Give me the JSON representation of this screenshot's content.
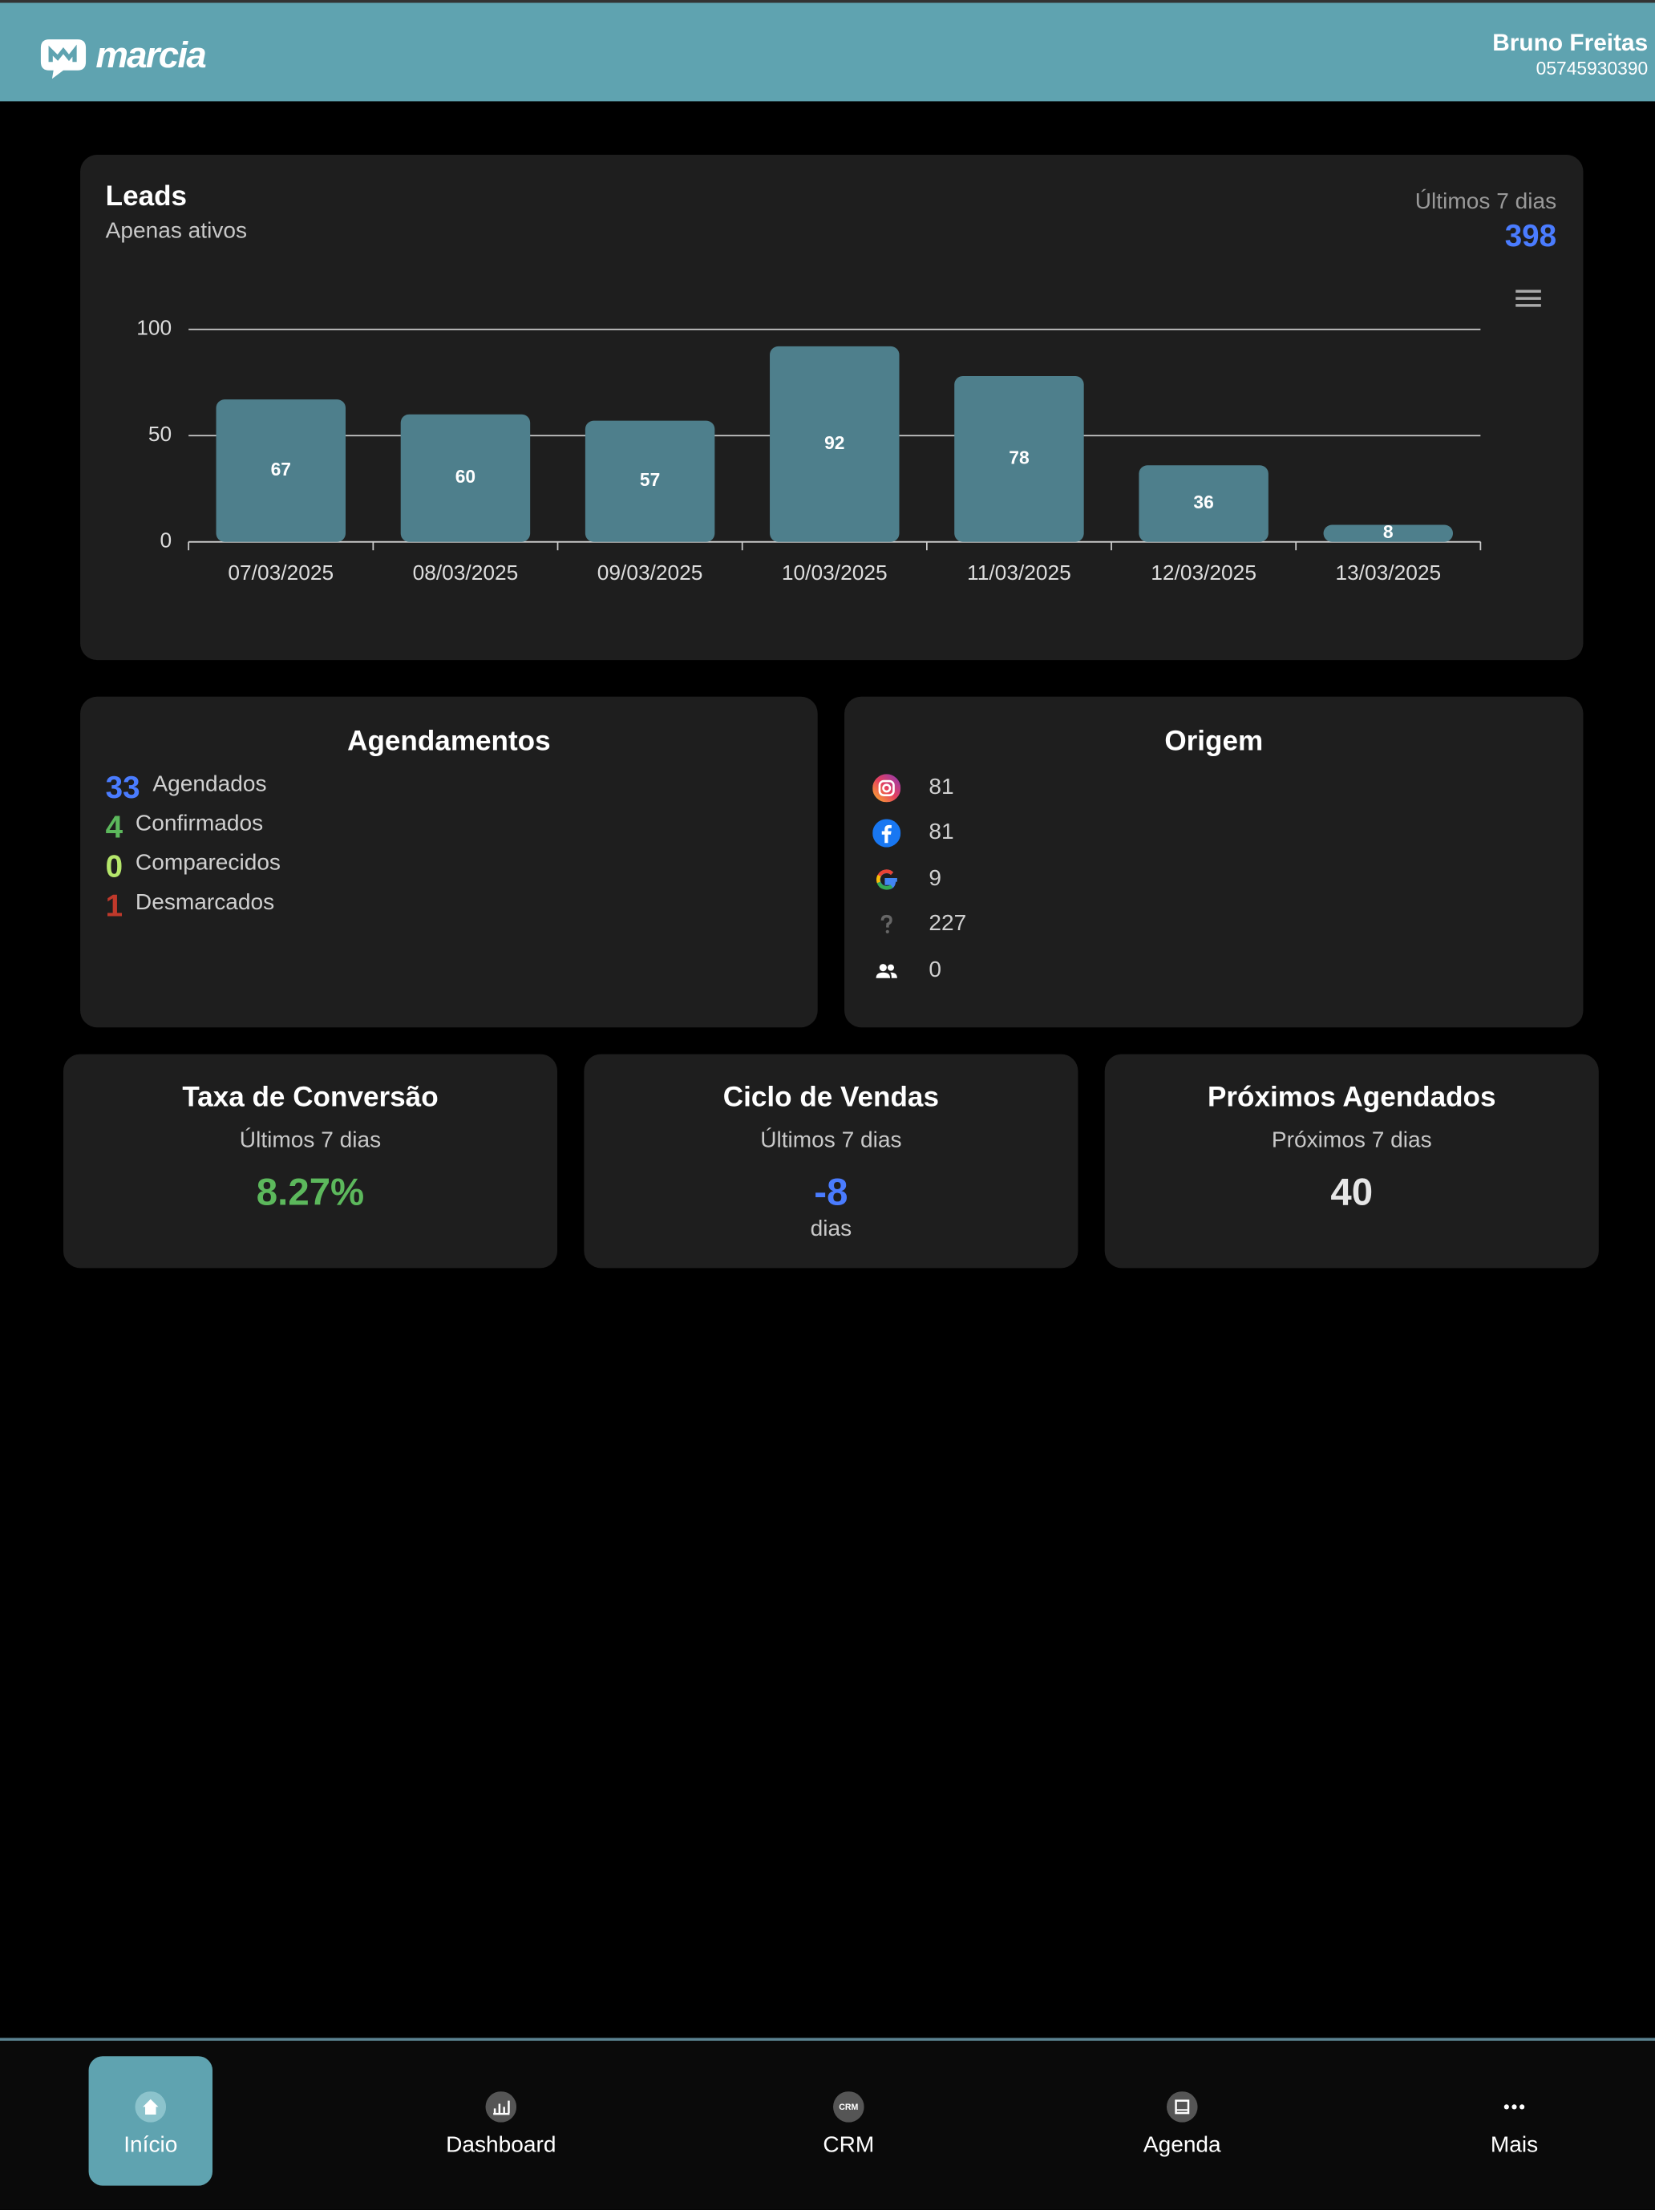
{
  "header": {
    "logo": "marcia",
    "user_name": "Bruno Freitas",
    "user_id": "05745930390"
  },
  "leads": {
    "title": "Leads",
    "subtitle": "Apenas ativos",
    "period": "Últimos 7 dias",
    "total": 398
  },
  "chart_data": {
    "type": "bar",
    "categories": [
      "07/03/2025",
      "08/03/2025",
      "09/03/2025",
      "10/03/2025",
      "11/03/2025",
      "12/03/2025",
      "13/03/2025"
    ],
    "values": [
      67,
      60,
      57,
      92,
      78,
      36,
      8
    ],
    "color": "#4e7f8c",
    "ylim": [
      0,
      100
    ],
    "yticks": [
      0,
      50,
      100
    ],
    "grid": true
  },
  "agendamentos": {
    "title": "Agendamentos",
    "items": [
      {
        "count": 33,
        "label": "Agendados",
        "color": "#4a7cff"
      },
      {
        "count": 4,
        "label": "Confirmados",
        "color": "#5cb85c"
      },
      {
        "count": 0,
        "label": "Comparecidos",
        "color": "#b5e66b"
      },
      {
        "count": 1,
        "label": "Desmarcados",
        "color": "#c0392b"
      }
    ]
  },
  "origem": {
    "title": "Origem",
    "values": [
      81,
      81,
      9,
      227,
      0
    ]
  },
  "kpis": [
    {
      "title": "Taxa de Conversão",
      "subtitle": "Últimos 7 dias",
      "value": "8.27%",
      "color": "#5cb85c"
    },
    {
      "title": "Ciclo de Vendas",
      "subtitle": "Últimos 7 dias",
      "value": "-8",
      "unit": "dias",
      "color": "#4a7cff"
    },
    {
      "title": "Próximos Agendados",
      "subtitle": "Próximos 7 dias",
      "value": "40",
      "color": "#e6e6e6"
    }
  ],
  "nav": {
    "items": [
      "Início",
      "Dashboard",
      "CRM",
      "Agenda",
      "Mais"
    ]
  }
}
